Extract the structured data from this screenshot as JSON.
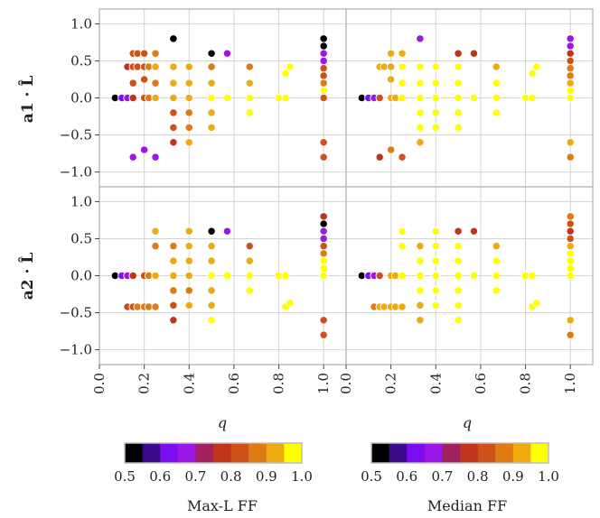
{
  "chart_data": {
    "type": "scatter",
    "layout": "2x2 grid of scatter panels sharing axes",
    "x_label": "q",
    "y_labels": [
      "a1 · L̂",
      "a2 · L̂"
    ],
    "xlim": [
      0.0,
      1.1
    ],
    "ylim": [
      -1.2,
      1.2
    ],
    "x_ticks": [
      "0.0",
      "0.2",
      "0.4",
      "0.6",
      "0.8",
      "1.0"
    ],
    "y_ticks": [
      "1.0",
      "0.5",
      "0.0",
      "−0.5",
      "−1.0"
    ],
    "grid": true,
    "colormap": [
      "#000000",
      "#3a0a8c",
      "#7c0df0",
      "#9b17e6",
      "#a02060",
      "#c0341c",
      "#d0501a",
      "#e07a14",
      "#eeaa10",
      "#ffff00"
    ],
    "colorbars": [
      {
        "title": "Max-L FF",
        "ticks": [
          "0.5",
          "0.6",
          "0.7",
          "0.8",
          "0.9",
          "1.0"
        ],
        "range": [
          0.5,
          1.0
        ]
      },
      {
        "title": "Median FF",
        "ticks": [
          "0.5",
          "0.6",
          "0.7",
          "0.8",
          "0.9",
          "1.0"
        ],
        "range": [
          0.5,
          1.0
        ]
      }
    ],
    "panels": [
      {
        "id": "a1-maxL",
        "points": [
          [
            0.07,
            0.0,
            0.52
          ],
          [
            0.1,
            0.0,
            0.64
          ],
          [
            0.125,
            0.0,
            0.66
          ],
          [
            0.15,
            0.0,
            0.75
          ],
          [
            0.2,
            0.0,
            0.8
          ],
          [
            0.22,
            0.0,
            0.85
          ],
          [
            0.25,
            0.0,
            0.9
          ],
          [
            0.33,
            0.0,
            0.92
          ],
          [
            0.4,
            0.0,
            0.9
          ],
          [
            0.5,
            0.0,
            0.95
          ],
          [
            0.57,
            0.0,
            1.0
          ],
          [
            0.67,
            0.0,
            1.0
          ],
          [
            0.8,
            0.0,
            1.0
          ],
          [
            0.83,
            0.0,
            1.0
          ],
          [
            1.0,
            0.0,
            0.8
          ],
          [
            0.125,
            0.42,
            0.78
          ],
          [
            0.15,
            0.42,
            0.8
          ],
          [
            0.17,
            0.42,
            0.82
          ],
          [
            0.2,
            0.42,
            0.84
          ],
          [
            0.22,
            0.42,
            0.86
          ],
          [
            0.25,
            0.42,
            0.9
          ],
          [
            0.33,
            0.42,
            0.92
          ],
          [
            0.4,
            0.42,
            0.93
          ],
          [
            0.5,
            0.42,
            0.85
          ],
          [
            0.67,
            0.42,
            0.88
          ],
          [
            0.85,
            0.42,
            1.0
          ],
          [
            0.15,
            0.6,
            0.8
          ],
          [
            0.17,
            0.6,
            0.82
          ],
          [
            0.2,
            0.6,
            0.84
          ],
          [
            0.25,
            0.6,
            0.86
          ],
          [
            0.33,
            0.8,
            0.5
          ],
          [
            0.5,
            0.6,
            0.52
          ],
          [
            0.57,
            0.6,
            0.68
          ],
          [
            1.0,
            0.8,
            0.5
          ],
          [
            1.0,
            0.7,
            0.5
          ],
          [
            1.0,
            0.6,
            0.65
          ],
          [
            1.0,
            0.5,
            0.7
          ],
          [
            1.0,
            0.4,
            0.8
          ],
          [
            1.0,
            0.3,
            0.84
          ],
          [
            1.0,
            0.2,
            0.87
          ],
          [
            1.0,
            0.1,
            0.95
          ],
          [
            0.15,
            0.2,
            0.8
          ],
          [
            0.2,
            0.25,
            0.82
          ],
          [
            0.25,
            0.2,
            0.86
          ],
          [
            0.33,
            0.2,
            0.9
          ],
          [
            0.4,
            0.2,
            0.92
          ],
          [
            0.5,
            0.2,
            0.9
          ],
          [
            0.67,
            0.2,
            0.92
          ],
          [
            0.83,
            0.33,
            0.95
          ],
          [
            0.2,
            -0.7,
            0.65
          ],
          [
            0.15,
            -0.8,
            0.66
          ],
          [
            0.25,
            -0.8,
            0.7
          ],
          [
            0.33,
            -0.6,
            0.78
          ],
          [
            0.33,
            -0.4,
            0.82
          ],
          [
            0.33,
            -0.2,
            0.84
          ],
          [
            0.4,
            -0.2,
            0.88
          ],
          [
            0.4,
            -0.4,
            0.86
          ],
          [
            0.4,
            -0.6,
            0.9
          ],
          [
            0.5,
            -0.2,
            0.9
          ],
          [
            0.5,
            -0.4,
            0.92
          ],
          [
            0.67,
            -0.2,
            1.0
          ],
          [
            1.0,
            -0.6,
            0.82
          ],
          [
            1.0,
            -0.8,
            0.8
          ]
        ]
      },
      {
        "id": "a1-median",
        "points": [
          [
            0.07,
            0.0,
            0.52
          ],
          [
            0.1,
            0.0,
            0.62
          ],
          [
            0.125,
            0.0,
            0.66
          ],
          [
            0.15,
            0.0,
            0.8
          ],
          [
            0.2,
            0.0,
            0.9
          ],
          [
            0.22,
            0.0,
            0.92
          ],
          [
            0.25,
            0.0,
            0.95
          ],
          [
            0.33,
            0.0,
            1.0
          ],
          [
            0.4,
            0.0,
            1.0
          ],
          [
            0.5,
            0.0,
            1.0
          ],
          [
            0.57,
            0.0,
            1.0
          ],
          [
            0.67,
            0.0,
            1.0
          ],
          [
            0.8,
            0.0,
            1.0
          ],
          [
            0.83,
            0.0,
            1.0
          ],
          [
            1.0,
            0.0,
            0.95
          ],
          [
            0.15,
            0.42,
            0.9
          ],
          [
            0.17,
            0.42,
            0.92
          ],
          [
            0.2,
            0.42,
            0.94
          ],
          [
            0.25,
            0.42,
            0.95
          ],
          [
            0.33,
            0.42,
            0.96
          ],
          [
            0.4,
            0.42,
            0.97
          ],
          [
            0.5,
            0.42,
            0.98
          ],
          [
            0.67,
            0.42,
            0.9
          ],
          [
            0.85,
            0.42,
            1.0
          ],
          [
            0.2,
            0.6,
            0.9
          ],
          [
            0.25,
            0.6,
            0.92
          ],
          [
            0.33,
            0.8,
            0.68
          ],
          [
            0.5,
            0.6,
            0.76
          ],
          [
            0.57,
            0.6,
            0.76
          ],
          [
            1.0,
            0.8,
            0.66
          ],
          [
            1.0,
            0.7,
            0.68
          ],
          [
            1.0,
            0.6,
            0.75
          ],
          [
            1.0,
            0.5,
            0.8
          ],
          [
            1.0,
            0.4,
            0.85
          ],
          [
            1.0,
            0.3,
            0.88
          ],
          [
            1.0,
            0.2,
            0.9
          ],
          [
            1.0,
            0.1,
            1.0
          ],
          [
            0.2,
            0.25,
            0.92
          ],
          [
            0.25,
            0.2,
            0.95
          ],
          [
            0.33,
            0.2,
            1.0
          ],
          [
            0.4,
            0.2,
            1.0
          ],
          [
            0.5,
            0.2,
            1.0
          ],
          [
            0.67,
            0.2,
            1.0
          ],
          [
            0.83,
            0.33,
            1.0
          ],
          [
            0.2,
            -0.7,
            0.88
          ],
          [
            0.15,
            -0.8,
            0.78
          ],
          [
            0.25,
            -0.8,
            0.8
          ],
          [
            0.33,
            -0.6,
            0.9
          ],
          [
            0.33,
            -0.4,
            0.95
          ],
          [
            0.33,
            -0.2,
            1.0
          ],
          [
            0.4,
            -0.2,
            1.0
          ],
          [
            0.4,
            -0.4,
            1.0
          ],
          [
            0.5,
            -0.2,
            1.0
          ],
          [
            0.5,
            -0.4,
            1.0
          ],
          [
            0.67,
            -0.2,
            1.0
          ],
          [
            1.0,
            -0.6,
            0.9
          ],
          [
            1.0,
            -0.8,
            0.86
          ]
        ]
      },
      {
        "id": "a2-maxL",
        "points": [
          [
            0.07,
            0.0,
            0.52
          ],
          [
            0.1,
            0.0,
            0.64
          ],
          [
            0.125,
            0.0,
            0.66
          ],
          [
            0.15,
            0.0,
            0.75
          ],
          [
            0.2,
            0.0,
            0.8
          ],
          [
            0.22,
            0.0,
            0.85
          ],
          [
            0.25,
            0.0,
            0.9
          ],
          [
            0.33,
            0.0,
            0.92
          ],
          [
            0.4,
            0.0,
            0.9
          ],
          [
            0.5,
            0.0,
            0.95
          ],
          [
            0.57,
            0.0,
            1.0
          ],
          [
            0.67,
            0.0,
            1.0
          ],
          [
            0.8,
            0.0,
            1.0
          ],
          [
            0.83,
            0.0,
            1.0
          ],
          [
            1.0,
            0.0,
            1.0
          ],
          [
            0.125,
            -0.42,
            0.82
          ],
          [
            0.15,
            -0.42,
            0.84
          ],
          [
            0.17,
            -0.42,
            0.86
          ],
          [
            0.2,
            -0.42,
            0.86
          ],
          [
            0.22,
            -0.42,
            0.88
          ],
          [
            0.25,
            -0.42,
            0.88
          ],
          [
            0.83,
            -0.42,
            1.0
          ],
          [
            0.85,
            -0.37,
            1.0
          ],
          [
            0.25,
            0.6,
            0.9
          ],
          [
            0.33,
            0.4,
            0.88
          ],
          [
            0.4,
            0.6,
            0.92
          ],
          [
            0.5,
            0.6,
            0.5
          ],
          [
            0.57,
            0.6,
            0.68
          ],
          [
            0.67,
            0.4,
            0.84
          ],
          [
            0.67,
            0.2,
            0.9
          ],
          [
            0.4,
            0.4,
            0.92
          ],
          [
            0.5,
            0.4,
            0.9
          ],
          [
            0.25,
            0.4,
            0.86
          ],
          [
            1.0,
            0.8,
            0.76
          ],
          [
            1.0,
            0.7,
            0.5
          ],
          [
            1.0,
            0.6,
            0.65
          ],
          [
            1.0,
            0.5,
            0.7
          ],
          [
            1.0,
            0.4,
            0.8
          ],
          [
            1.0,
            0.3,
            0.88
          ],
          [
            1.0,
            0.2,
            1.0
          ],
          [
            1.0,
            0.1,
            1.0
          ],
          [
            0.33,
            0.2,
            0.9
          ],
          [
            0.4,
            0.2,
            0.92
          ],
          [
            0.5,
            0.2,
            0.9
          ],
          [
            0.33,
            -0.2,
            0.86
          ],
          [
            0.33,
            -0.4,
            0.84
          ],
          [
            0.33,
            -0.6,
            0.78
          ],
          [
            0.4,
            -0.2,
            0.88
          ],
          [
            0.4,
            -0.4,
            0.9
          ],
          [
            0.5,
            -0.2,
            0.92
          ],
          [
            0.5,
            -0.4,
            0.94
          ],
          [
            0.5,
            -0.6,
            1.0
          ],
          [
            0.67,
            -0.2,
            1.0
          ],
          [
            1.0,
            -0.6,
            0.82
          ],
          [
            1.0,
            -0.8,
            0.8
          ]
        ]
      },
      {
        "id": "a2-median",
        "points": [
          [
            0.07,
            0.0,
            0.52
          ],
          [
            0.1,
            0.0,
            0.62
          ],
          [
            0.125,
            0.0,
            0.66
          ],
          [
            0.15,
            0.0,
            0.8
          ],
          [
            0.2,
            0.0,
            0.9
          ],
          [
            0.22,
            0.0,
            0.92
          ],
          [
            0.25,
            0.0,
            0.95
          ],
          [
            0.33,
            0.0,
            1.0
          ],
          [
            0.4,
            0.0,
            1.0
          ],
          [
            0.5,
            0.0,
            1.0
          ],
          [
            0.57,
            0.0,
            1.0
          ],
          [
            0.67,
            0.0,
            1.0
          ],
          [
            0.8,
            0.0,
            1.0
          ],
          [
            0.83,
            0.0,
            1.0
          ],
          [
            1.0,
            0.0,
            1.0
          ],
          [
            0.125,
            -0.42,
            0.88
          ],
          [
            0.15,
            -0.42,
            0.9
          ],
          [
            0.17,
            -0.42,
            0.9
          ],
          [
            0.2,
            -0.42,
            0.92
          ],
          [
            0.22,
            -0.42,
            0.92
          ],
          [
            0.25,
            -0.42,
            0.92
          ],
          [
            0.83,
            -0.42,
            1.0
          ],
          [
            0.85,
            -0.37,
            1.0
          ],
          [
            0.25,
            0.6,
            1.0
          ],
          [
            0.33,
            0.4,
            0.92
          ],
          [
            0.4,
            0.6,
            1.0
          ],
          [
            0.5,
            0.6,
            0.76
          ],
          [
            0.57,
            0.6,
            0.76
          ],
          [
            0.67,
            0.4,
            0.9
          ],
          [
            0.67,
            0.2,
            1.0
          ],
          [
            0.4,
            0.4,
            1.0
          ],
          [
            0.5,
            0.4,
            1.0
          ],
          [
            0.25,
            0.4,
            1.0
          ],
          [
            1.0,
            0.8,
            0.86
          ],
          [
            1.0,
            0.7,
            0.84
          ],
          [
            1.0,
            0.6,
            0.76
          ],
          [
            1.0,
            0.5,
            0.82
          ],
          [
            1.0,
            0.4,
            0.9
          ],
          [
            1.0,
            0.3,
            1.0
          ],
          [
            1.0,
            0.2,
            1.0
          ],
          [
            1.0,
            0.1,
            1.0
          ],
          [
            0.33,
            0.2,
            1.0
          ],
          [
            0.4,
            0.2,
            1.0
          ],
          [
            0.5,
            0.2,
            1.0
          ],
          [
            0.33,
            -0.2,
            0.95
          ],
          [
            0.33,
            -0.4,
            0.92
          ],
          [
            0.33,
            -0.6,
            0.9
          ],
          [
            0.4,
            -0.2,
            1.0
          ],
          [
            0.4,
            -0.4,
            1.0
          ],
          [
            0.5,
            -0.2,
            1.0
          ],
          [
            0.5,
            -0.4,
            1.0
          ],
          [
            0.5,
            -0.6,
            1.0
          ],
          [
            0.67,
            -0.2,
            1.0
          ],
          [
            1.0,
            -0.6,
            0.9
          ],
          [
            1.0,
            -0.8,
            0.86
          ]
        ]
      }
    ]
  }
}
